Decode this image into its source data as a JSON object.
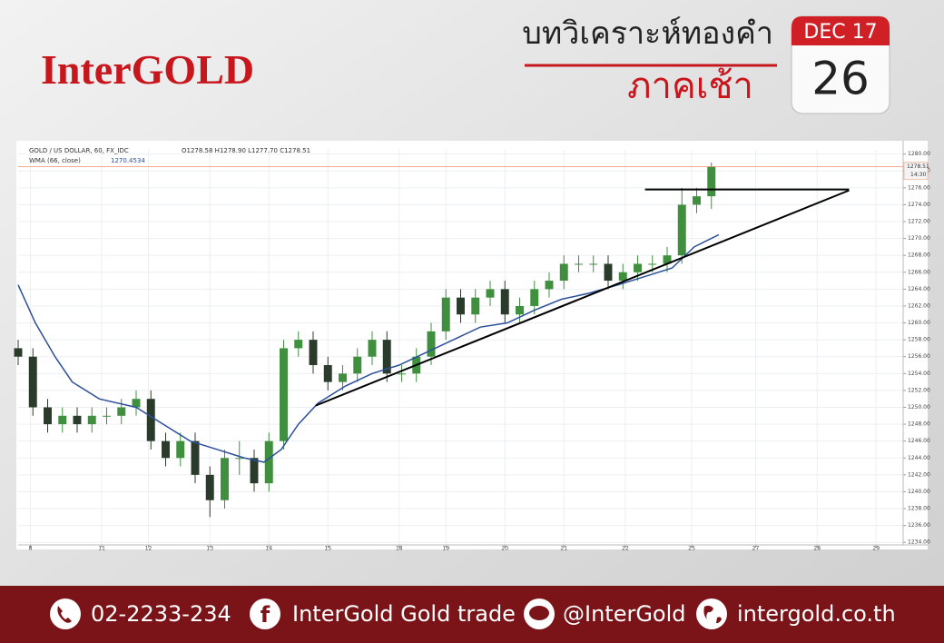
{
  "header": {
    "logo": "InterGOLD",
    "title": "บทวิเคราะห์ทองคำ",
    "session": "ภาคเช้า",
    "calendar": {
      "month_year": "DEC 17",
      "day": "26"
    }
  },
  "chart_data": {
    "type": "candlestick",
    "title": "GOLD / US DOLLAR, 60, FX_IDC",
    "ohlc_label": "O1278.58 H1278.90 L1277.70 C1278.51",
    "up_color": "#3f8f3f",
    "down_color": "#2b3b2b",
    "x": [
      0,
      6,
      12,
      18,
      24,
      30,
      36,
      42,
      48,
      54,
      60,
      66,
      72,
      78,
      84,
      90,
      96,
      102,
      108,
      114,
      120,
      126,
      132,
      138,
      144,
      150,
      156,
      162,
      168,
      174,
      180,
      186,
      192,
      198,
      204,
      210,
      216,
      222,
      228,
      234,
      240,
      246,
      252,
      258,
      264,
      270,
      276,
      282
    ],
    "open": [
      1257,
      1256,
      1250,
      1248,
      1249,
      1248,
      1249,
      1249,
      1250,
      1251,
      1246,
      1244,
      1246,
      1242,
      1239,
      1244,
      1244,
      1241,
      1246,
      1257,
      1258,
      1255,
      1253,
      1254,
      1256,
      1258,
      1254,
      1254,
      1256,
      1259,
      1263,
      1261,
      1263,
      1264,
      1261,
      1262,
      1264,
      1265,
      1267,
      1267,
      1267,
      1265,
      1266,
      1267,
      1267,
      1268,
      1274,
      1275
    ],
    "high": [
      1258,
      1257,
      1251,
      1250,
      1250,
      1250,
      1250,
      1251,
      1252,
      1252,
      1247,
      1247,
      1247,
      1243,
      1245,
      1246,
      1245,
      1247,
      1258,
      1259,
      1259,
      1256,
      1255,
      1257,
      1259,
      1259,
      1255,
      1257,
      1260,
      1264,
      1264,
      1264,
      1265,
      1265,
      1263,
      1265,
      1266,
      1268,
      1268,
      1268,
      1268,
      1267,
      1268,
      1268,
      1269,
      1276,
      1276,
      1279
    ],
    "low": [
      1255,
      1249,
      1247,
      1247,
      1247,
      1247,
      1248,
      1248,
      1249,
      1245,
      1243,
      1243,
      1241,
      1237,
      1238,
      1242,
      1240,
      1240,
      1245,
      1256,
      1254,
      1252,
      1252,
      1253,
      1255,
      1253,
      1253,
      1253,
      1255,
      1258,
      1260,
      1260,
      1262,
      1260,
      1260,
      1261,
      1263,
      1264,
      1266,
      1266,
      1264,
      1264,
      1265,
      1266,
      1266,
      1267,
      1273,
      1273.5
    ],
    "close": [
      1256,
      1250,
      1248,
      1249,
      1248,
      1249,
      1249,
      1250,
      1251,
      1246,
      1244,
      1246,
      1242,
      1239,
      1244,
      1244,
      1241,
      1246,
      1257,
      1258,
      1255,
      1253,
      1254,
      1256,
      1258,
      1254,
      1254,
      1256,
      1259,
      1263,
      1261,
      1263,
      1264,
      1261,
      1262,
      1264,
      1265,
      1267,
      1267,
      1267,
      1265,
      1266,
      1267,
      1267,
      1268,
      1274,
      1275,
      1278.51
    ],
    "indicator": {
      "name": "WMA (66, close)",
      "value_label": "1270.4534",
      "color": "#2c4f9a",
      "x": [
        0,
        7,
        15,
        22,
        33,
        48,
        59,
        70,
        81,
        92,
        100,
        107,
        114,
        122,
        133,
        144,
        155,
        166,
        177,
        188,
        199,
        210,
        221,
        232,
        244,
        255,
        266,
        275,
        285
      ],
      "values": [
        1264.5,
        1260,
        1256,
        1253,
        1251,
        1250,
        1248,
        1246,
        1245,
        1244,
        1243.5,
        1245,
        1248,
        1250.5,
        1252.5,
        1254,
        1255,
        1256.5,
        1258,
        1259.5,
        1260,
        1261.5,
        1262.8,
        1263.5,
        1264.5,
        1265.5,
        1266.5,
        1269,
        1270.45
      ]
    },
    "trendlines": [
      {
        "x": [
          121,
          338
        ],
        "y": [
          1250.2,
          1275.7
        ]
      },
      {
        "x": [
          255,
          338
        ],
        "y": [
          1275.8,
          1275.8
        ]
      }
    ],
    "last_price": {
      "value": 1278.51,
      "time": "14:30",
      "color": "#f0906a"
    },
    "xlim": [
      0,
      360
    ],
    "xticks": [
      {
        "value": 5,
        "label": "8"
      },
      {
        "value": 34,
        "label": "11"
      },
      {
        "value": 53,
        "label": "12"
      },
      {
        "value": 78,
        "label": "13"
      },
      {
        "value": 102,
        "label": "14"
      },
      {
        "value": 126,
        "label": "15"
      },
      {
        "value": 155,
        "label": "18"
      },
      {
        "value": 174,
        "label": "19"
      },
      {
        "value": 198,
        "label": "20"
      },
      {
        "value": 222,
        "label": "21"
      },
      {
        "value": 247,
        "label": "22"
      },
      {
        "value": 274,
        "label": "25"
      },
      {
        "value": 300,
        "label": "27"
      },
      {
        "value": 325,
        "label": "28"
      },
      {
        "value": 349,
        "label": "29"
      }
    ],
    "ylim": [
      1233.7,
      1280.5
    ],
    "yticks": [
      {
        "value": 1234,
        "label": "1234.00"
      },
      {
        "value": 1236,
        "label": "1236.00"
      },
      {
        "value": 1238,
        "label": "1238.00"
      },
      {
        "value": 1240,
        "label": "1240.00"
      },
      {
        "value": 1242,
        "label": "1242.00"
      },
      {
        "value": 1244,
        "label": "1244.00"
      },
      {
        "value": 1246,
        "label": "1246.00"
      },
      {
        "value": 1248,
        "label": "1248.00"
      },
      {
        "value": 1250,
        "label": "1250.00"
      },
      {
        "value": 1252,
        "label": "1252.00"
      },
      {
        "value": 1254,
        "label": "1254.00"
      },
      {
        "value": 1256,
        "label": "1256.00"
      },
      {
        "value": 1258,
        "label": "1258.00"
      },
      {
        "value": 1260,
        "label": "1260.00"
      },
      {
        "value": 1262,
        "label": "1262.00"
      },
      {
        "value": 1264,
        "label": "1264.00"
      },
      {
        "value": 1266,
        "label": "1266.00"
      },
      {
        "value": 1268,
        "label": "1268.00"
      },
      {
        "value": 1270,
        "label": "1270.00"
      },
      {
        "value": 1272,
        "label": "1272.00"
      },
      {
        "value": 1274,
        "label": "1274.00"
      },
      {
        "value": 1276,
        "label": "1276.00"
      },
      {
        "value": 1278,
        "label": "1278.00"
      },
      {
        "value": 1280,
        "label": "1280.00"
      }
    ],
    "grid": true
  },
  "footer": {
    "phone": "02-2233-234",
    "facebook": "InterGold Gold trade",
    "line": "@InterGold",
    "website": "intergold.co.th"
  }
}
